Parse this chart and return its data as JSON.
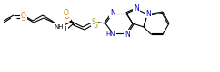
{
  "bg_color": "#ffffff",
  "bond_color": "#000000",
  "figsize": [
    2.42,
    0.8
  ],
  "dpi": 100,
  "lw": 0.8,
  "atom_colors": {
    "O": "#e07800",
    "N": "#0000bb",
    "S": "#b8a000",
    "C": "#000000"
  },
  "font_size": 5.0,
  "xlim": [
    0,
    242
  ],
  "ylim": [
    0,
    80
  ]
}
